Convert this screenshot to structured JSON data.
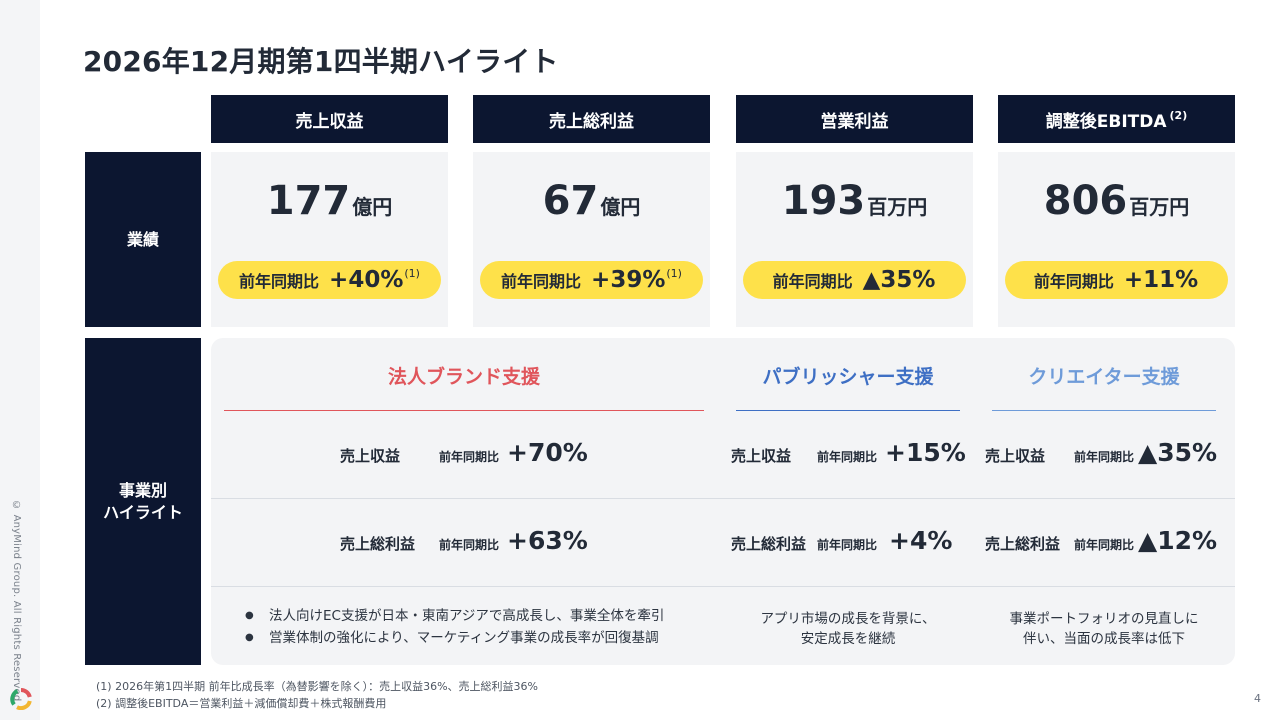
{
  "title": "2026年12月期第1四半期ハイライト",
  "kpi_headers": [
    {
      "label": "売上収益",
      "sup": ""
    },
    {
      "label": "売上総利益",
      "sup": ""
    },
    {
      "label": "営業利益",
      "sup": ""
    },
    {
      "label": "調整後EBITDA",
      "sup": "(2)"
    }
  ],
  "row_labels": {
    "performance": "業績",
    "business_line1": "事業別",
    "business_line2": "ハイライト"
  },
  "kpis": [
    {
      "value": "177",
      "unit": "億円",
      "compare_label": "前年同期比",
      "change": "+40%",
      "note": "(1)"
    },
    {
      "value": "67",
      "unit": "億円",
      "compare_label": "前年同期比",
      "change": "+39%",
      "note": "(1)"
    },
    {
      "value": "193",
      "unit": "百万円",
      "compare_label": "前年同期比",
      "change": "▲35%",
      "note": ""
    },
    {
      "value": "806",
      "unit": "百万円",
      "compare_label": "前年同期比",
      "change": "+11%",
      "note": ""
    }
  ],
  "colors": {
    "navy": "#0c1630",
    "pill": "#fee14a",
    "corporate": "#e0555b",
    "publisher": "#3e6fc4",
    "creator": "#6e9bd9"
  },
  "segments": [
    {
      "title": "法人ブランド支援",
      "revenue_label": "売上収益",
      "revenue_compare": "前年同期比",
      "revenue_change": "+70%",
      "gross_label": "売上総利益",
      "gross_compare": "前年同期比",
      "gross_change": "+63%",
      "bullets": [
        "法人向けEC支援が日本・東南アジアで高成長し、事業全体を牽引",
        "営業体制の強化により、マーケティング事業の成長率が回復基調"
      ]
    },
    {
      "title": "パブリッシャー支援",
      "revenue_label": "売上収益",
      "revenue_compare": "前年同期比",
      "revenue_change": "+15%",
      "gross_label": "売上総利益",
      "gross_compare": "前年同期比",
      "gross_change": "+4%",
      "note_line1": "アプリ市場の成長を背景に、",
      "note_line2": "安定成長を継続"
    },
    {
      "title": "クリエイター支援",
      "revenue_label": "売上収益",
      "revenue_compare": "前年同期比",
      "revenue_change": "▲35%",
      "gross_label": "売上総利益",
      "gross_compare": "前年同期比",
      "gross_change": "▲12%",
      "note_line1": "事業ポートフォリオの見直しに",
      "note_line2": "伴い、当面の成長率は低下"
    }
  ],
  "footnotes": [
    "(1) 2026年第1四半期 前年比成長率（為替影響を除く）：売上収益36%、売上総利益36%",
    "(2) 調整後EBITDA＝営業利益＋減価償却費＋株式報酬費用"
  ],
  "copyright": "© AnyMind Group. All Rights Reserved.",
  "page_number": "4"
}
